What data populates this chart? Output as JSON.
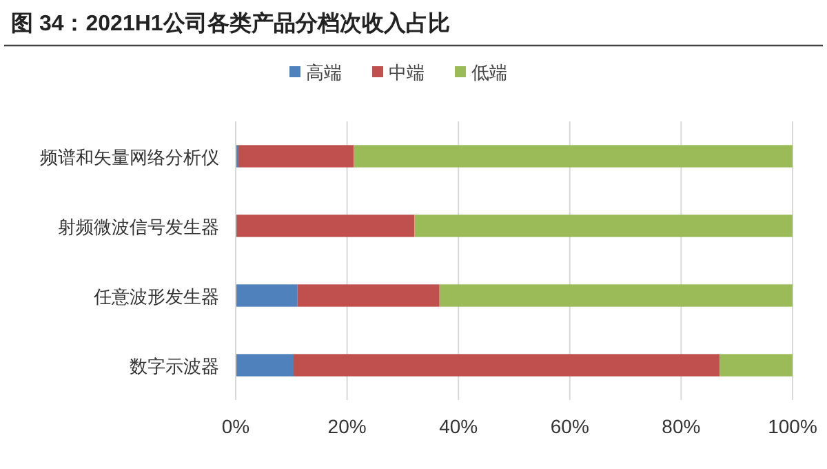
{
  "chart_data": {
    "type": "bar",
    "orientation": "horizontal",
    "stacked": true,
    "title": "图 34：2021H1公司各类产品分档次收入占比",
    "categories": [
      "频谱和矢量网络分析仪",
      "射频微波信号发生器",
      "任意波形发生器",
      "数字示波器"
    ],
    "series": [
      {
        "name": "高端",
        "color": "#4f81bd",
        "values": [
          0.5,
          0,
          11.1,
          10.4
        ]
      },
      {
        "name": "中端",
        "color": "#c0504d",
        "values": [
          20.7,
          32.1,
          25.5,
          76.5
        ]
      },
      {
        "name": "低端",
        "color": "#9bbb59",
        "values": [
          78.8,
          67.9,
          63.4,
          13.1
        ]
      }
    ],
    "xlim": [
      0,
      100
    ],
    "xticks": [
      {
        "value": 0,
        "label": "0%"
      },
      {
        "value": 20,
        "label": "20%"
      },
      {
        "value": 40,
        "label": "40%"
      },
      {
        "value": 60,
        "label": "60%"
      },
      {
        "value": 80,
        "label": "80%"
      },
      {
        "value": 100,
        "label": "100%"
      }
    ],
    "grid": "x",
    "legend": "top"
  }
}
